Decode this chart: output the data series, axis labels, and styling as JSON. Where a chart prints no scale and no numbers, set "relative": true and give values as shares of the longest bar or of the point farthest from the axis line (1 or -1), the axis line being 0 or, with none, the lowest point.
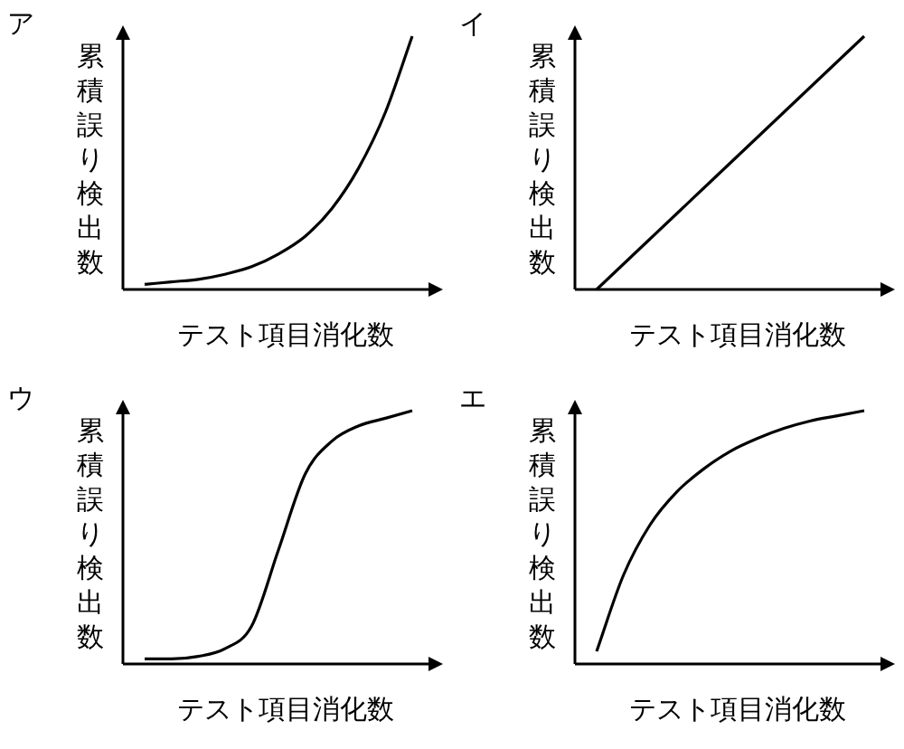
{
  "chart_data": [
    {
      "type": "line",
      "title": "ア",
      "ylabel": "累積誤り検出数",
      "xlabel": "テスト項目消化数",
      "relative": true,
      "categories": [
        null,
        null,
        null,
        null,
        null,
        null,
        null,
        null,
        null,
        null,
        null
      ],
      "series": [
        {
          "color": "#000000",
          "values": [
            0.02,
            0.03,
            0.04,
            0.06,
            0.09,
            0.14,
            0.21,
            0.32,
            0.48,
            0.7,
            1.0
          ]
        }
      ]
    },
    {
      "type": "line",
      "title": "イ",
      "ylabel": "累積誤り検出数",
      "xlabel": "テスト項目消化数",
      "relative": true,
      "categories": [
        null,
        null,
        null,
        null,
        null,
        null,
        null,
        null,
        null,
        null,
        null
      ],
      "series": [
        {
          "color": "#000000",
          "values": [
            0,
            0.1,
            0.2,
            0.3,
            0.4,
            0.5,
            0.6,
            0.7,
            0.8,
            0.9,
            1.0
          ]
        }
      ]
    },
    {
      "type": "line",
      "title": "ウ",
      "ylabel": "累積誤り検出数",
      "xlabel": "テスト項目消化数",
      "relative": true,
      "categories": [
        null,
        null,
        null,
        null,
        null,
        null,
        null,
        null,
        null,
        null,
        null
      ],
      "series": [
        {
          "color": "#000000",
          "values": [
            0.02,
            0.02,
            0.03,
            0.06,
            0.15,
            0.45,
            0.75,
            0.88,
            0.94,
            0.97,
            1.0
          ]
        }
      ]
    },
    {
      "type": "line",
      "title": "エ",
      "ylabel": "累積誤り検出数",
      "xlabel": "テスト項目消化数",
      "relative": true,
      "categories": [
        null,
        null,
        null,
        null,
        null,
        null,
        null,
        null,
        null,
        null,
        null
      ],
      "series": [
        {
          "color": "#000000",
          "values": [
            0.05,
            0.35,
            0.55,
            0.68,
            0.77,
            0.84,
            0.89,
            0.93,
            0.96,
            0.98,
            1.0
          ]
        }
      ]
    }
  ]
}
